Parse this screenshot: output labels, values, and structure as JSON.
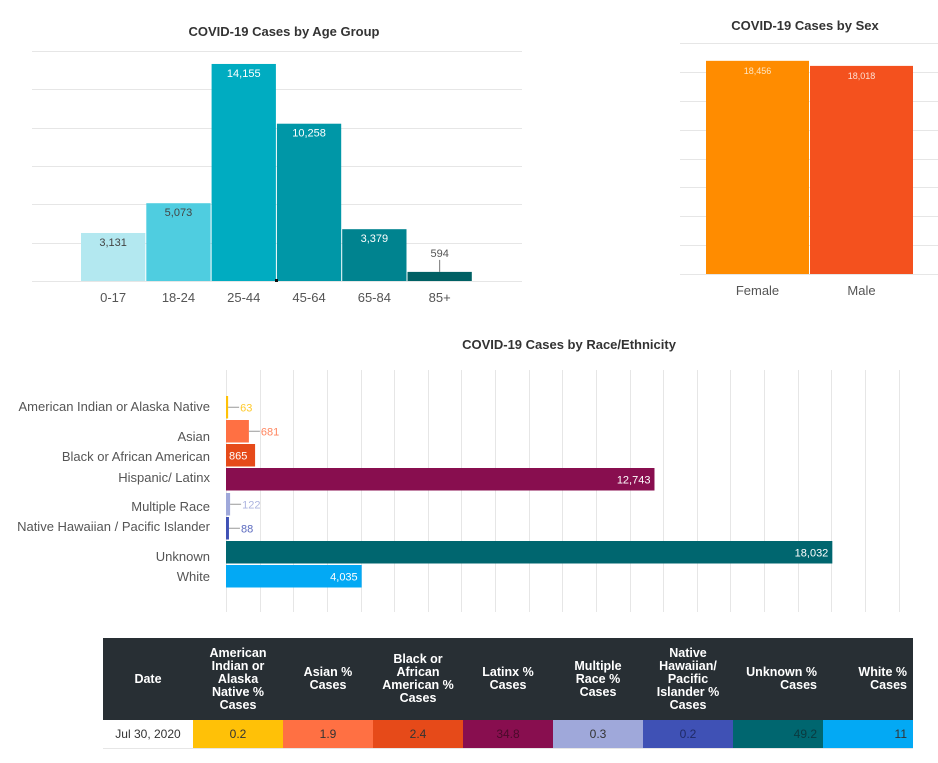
{
  "chart_data": [
    {
      "id": "age",
      "type": "bar",
      "title": "COVID-19 Cases by Age Group",
      "xlabel": "",
      "ylabel": "",
      "categories": [
        "0-17",
        "18-24",
        "25-44",
        "45-64",
        "65-84",
        "85+"
      ],
      "values": [
        3131,
        5073,
        14155,
        10258,
        3379,
        594
      ],
      "value_labels": [
        "3,131",
        "5,073",
        "14,155",
        "10,258",
        "3,379",
        "594"
      ],
      "colors": [
        "#b3e8f0",
        "#4fcde0",
        "#00acc1",
        "#0097a7",
        "#00838f",
        "#006064"
      ],
      "label_colors": [
        "#444444",
        "#444444",
        "#ffffff",
        "#ffffff",
        "#ffffff",
        "#555555"
      ],
      "ylim": [
        0,
        15000
      ],
      "ystep": 2500,
      "grid": true,
      "legend": "none"
    },
    {
      "id": "sex",
      "type": "bar",
      "title": "COVID-19 Cases by Sex",
      "xlabel": "",
      "ylabel": "",
      "categories": [
        "Female",
        "Male"
      ],
      "values": [
        18456,
        18018
      ],
      "value_labels": [
        "18,456",
        "18,018"
      ],
      "colors": [
        "#ff8c00",
        "#f4511e"
      ],
      "label_colors": [
        "#fde6c4",
        "#fde0d4"
      ],
      "ylim": [
        0,
        20000
      ],
      "ystep": 2500,
      "grid": true,
      "legend": "none"
    },
    {
      "id": "race",
      "type": "bar",
      "orientation": "horizontal",
      "title": "COVID-19 Cases by Race/Ethnicity",
      "xlabel": "",
      "ylabel": "",
      "categories": [
        "American Indian or Alaska Native",
        "Asian",
        "Black or African American",
        "Hispanic/ Latinx",
        "Multiple Race",
        "Native Hawaiian / Pacific Islander",
        "Unknown",
        "White"
      ],
      "values": [
        63,
        681,
        865,
        12743,
        122,
        88,
        18032,
        4035
      ],
      "value_labels": [
        "63",
        "681",
        "865",
        "12,743",
        "122",
        "88",
        "18,032",
        "4,035"
      ],
      "colors": [
        "#ffc107",
        "#ff7043",
        "#e64a19",
        "#880e4f",
        "#9fa8da",
        "#3f51b5",
        "#00666f",
        "#03a9f4"
      ],
      "label_inside": [
        false,
        false,
        true,
        true,
        false,
        false,
        true,
        true
      ],
      "xlim": [
        0,
        20000
      ],
      "xstep": 1000,
      "grid": true,
      "legend": "none"
    },
    {
      "id": "pct-table",
      "type": "table",
      "columns": [
        "Date",
        "American Indian or Alaska Native % Cases",
        "Asian % Cases",
        "Black or African American % Cases",
        "Latinx % Cases",
        "Multiple Race % Cases",
        "Native Hawaiian/ Pacific Islander % Cases",
        "Unknown % Cases",
        "White % Cases"
      ],
      "rows": [
        [
          "Jul 30, 2020",
          "0.2",
          "1.9",
          "2.4",
          "34.8",
          "0.3",
          "0.2",
          "49.2",
          "11"
        ]
      ],
      "cell_colors": [
        "#ffffff",
        "#ffc107",
        "#ff7043",
        "#e64a19",
        "#880e4f",
        "#9fa8da",
        "#3f51b5",
        "#00666f",
        "#03a9f4"
      ]
    }
  ],
  "table": {
    "headers": [
      "Date",
      "American Indian or Alaska Native % Cases",
      "Asian % Cases",
      "Black or African American % Cases",
      "Latinx % Cases",
      "Multiple Race % Cases",
      "Native Hawaiian/ Pacific Islander % Cases",
      "Unknown % Cases",
      "White % Cases"
    ],
    "row": [
      "Jul 30, 2020",
      "0.2",
      "1.9",
      "2.4",
      "34.8",
      "0.3",
      "0.2",
      "49.2",
      "11"
    ]
  },
  "colors": {
    "title": "#333333",
    "axis_text": "#555555",
    "grid": "#e6e6e6",
    "table_header_bg": "#282f34"
  }
}
